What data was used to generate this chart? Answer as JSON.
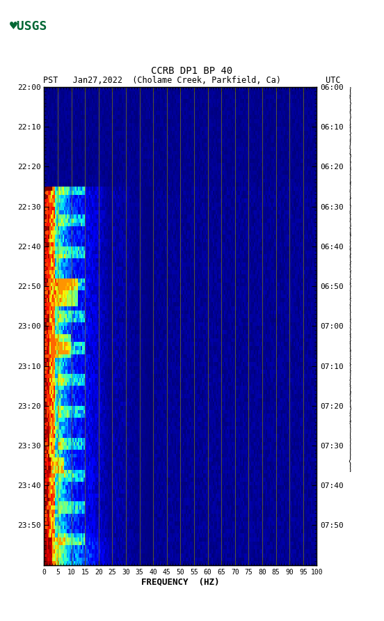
{
  "title_line1": "CCRB DP1 BP 40",
  "title_line2": "PST   Jan27,2022  (Cholame Creek, Parkfield, Ca)         UTC",
  "xlabel": "FREQUENCY  (HZ)",
  "left_ytick_vals": [
    0,
    10,
    20,
    30,
    40,
    50,
    60,
    70,
    80,
    90,
    100,
    110,
    120
  ],
  "left_ytick_labels": [
    "22:00",
    "22:10",
    "22:20",
    "22:30",
    "22:40",
    "22:50",
    "23:00",
    "23:10",
    "23:20",
    "23:30",
    "23:40",
    "23:50",
    ""
  ],
  "right_ytick_labels": [
    "06:00",
    "06:10",
    "06:20",
    "06:30",
    "06:40",
    "06:50",
    "07:00",
    "07:10",
    "07:20",
    "07:30",
    "07:40",
    "07:50",
    ""
  ],
  "xtick_vals": [
    0,
    5,
    10,
    15,
    20,
    25,
    30,
    35,
    40,
    45,
    50,
    55,
    60,
    65,
    70,
    75,
    80,
    85,
    90,
    95,
    100
  ],
  "freq_min": 0,
  "freq_max": 100,
  "time_steps": 120,
  "freq_steps": 200,
  "background_color": "#ffffff",
  "colormap": "jet",
  "grid_color": "#888800",
  "figsize": [
    5.52,
    8.92
  ],
  "dpi": 100
}
